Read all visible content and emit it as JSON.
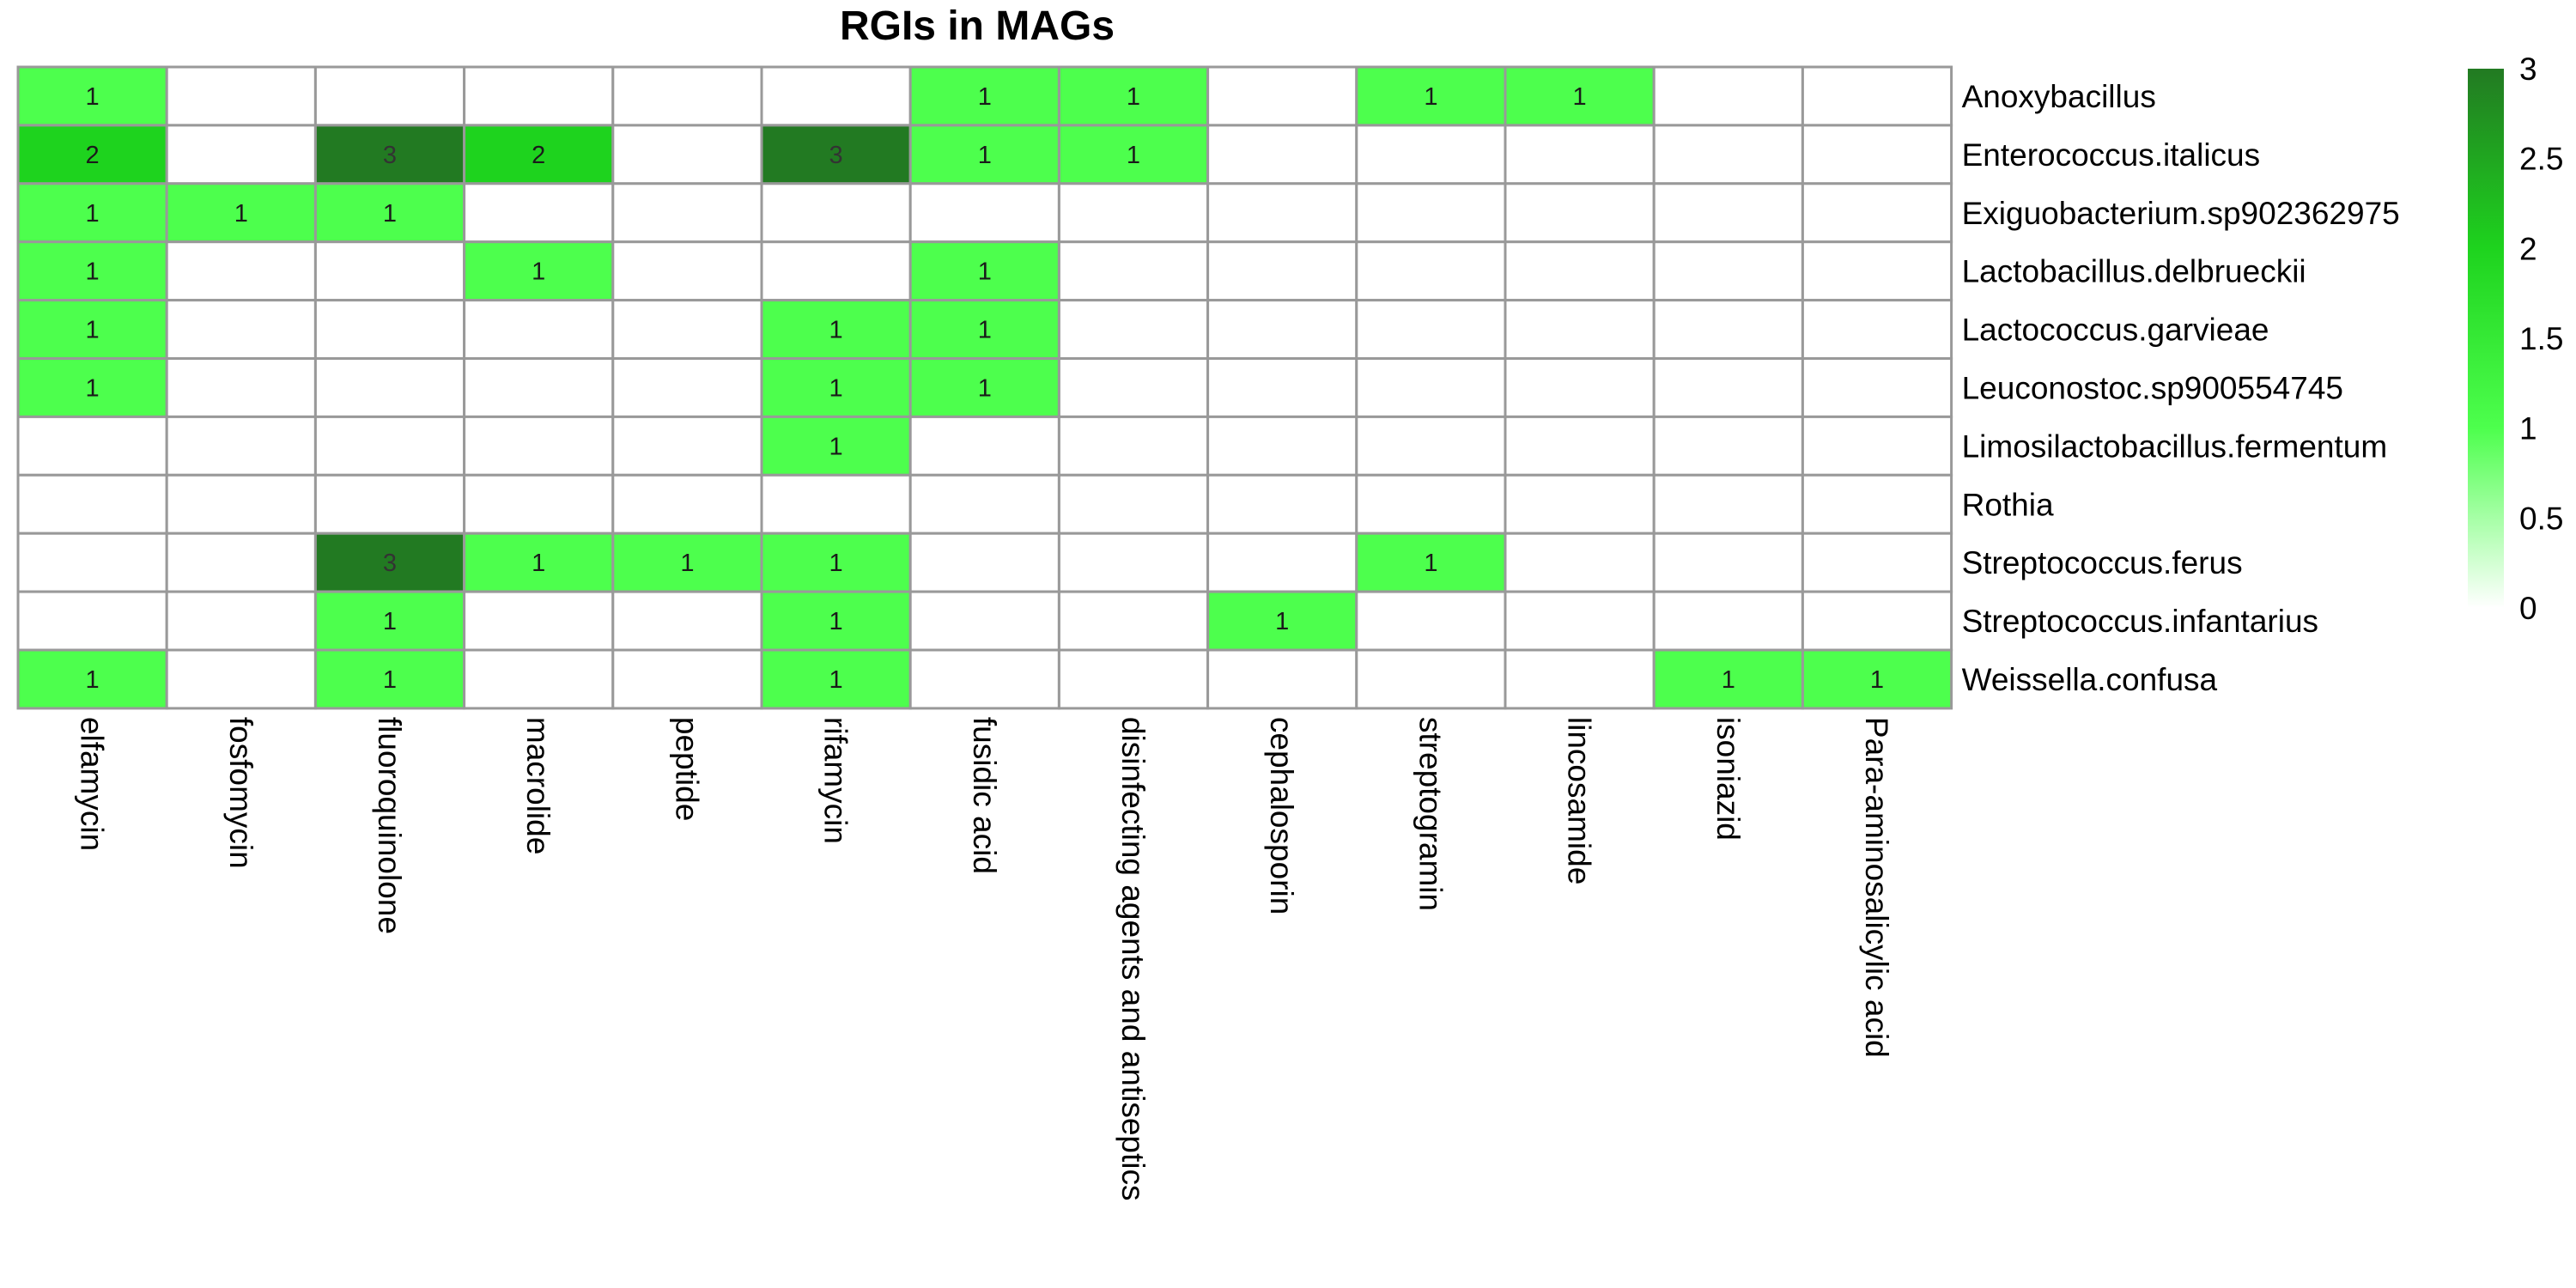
{
  "chart_data": {
    "type": "heatmap",
    "title": "RGIs in MAGs",
    "rows": [
      "Anoxybacillus",
      "Enterococcus.italicus",
      "Exiguobacterium.sp902362975",
      "Lactobacillus.delbrueckii",
      "Lactococcus.garvieae",
      "Leuconostoc.sp900554745",
      "Limosilactobacillus.fermentum",
      "Rothia",
      "Streptococcus.ferus",
      "Streptococcus.infantarius",
      "Weissella.confusa"
    ],
    "columns": [
      "elfamycin",
      "fosfomycin",
      "fluoroquinolone",
      "macrolide",
      "peptide",
      "rifamycin",
      "fusidic acid",
      "disinfecting agents and antiseptics",
      "cephalosporin",
      "streptogramin",
      "lincosamide",
      "isoniazid",
      "Para-aminosalicylic acid"
    ],
    "values": [
      [
        1,
        0,
        0,
        0,
        0,
        0,
        1,
        1,
        0,
        1,
        1,
        0,
        0
      ],
      [
        2,
        0,
        3,
        2,
        0,
        3,
        1,
        1,
        0,
        0,
        0,
        0,
        0
      ],
      [
        1,
        1,
        1,
        0,
        0,
        0,
        0,
        0,
        0,
        0,
        0,
        0,
        0
      ],
      [
        1,
        0,
        0,
        1,
        0,
        0,
        1,
        0,
        0,
        0,
        0,
        0,
        0
      ],
      [
        1,
        0,
        0,
        0,
        0,
        1,
        1,
        0,
        0,
        0,
        0,
        0,
        0
      ],
      [
        1,
        0,
        0,
        0,
        0,
        1,
        1,
        0,
        0,
        0,
        0,
        0,
        0
      ],
      [
        0,
        0,
        0,
        0,
        0,
        1,
        0,
        0,
        0,
        0,
        0,
        0,
        0
      ],
      [
        0,
        0,
        0,
        0,
        0,
        0,
        0,
        0,
        0,
        0,
        0,
        0,
        0
      ],
      [
        0,
        0,
        3,
        1,
        1,
        1,
        0,
        0,
        0,
        1,
        0,
        0,
        0
      ],
      [
        0,
        0,
        1,
        0,
        0,
        1,
        0,
        0,
        1,
        0,
        0,
        0,
        0
      ],
      [
        1,
        0,
        1,
        0,
        0,
        1,
        0,
        0,
        0,
        0,
        0,
        1,
        1
      ]
    ],
    "show_zero_labels": false,
    "color_scale": {
      "min": 0,
      "max": 3,
      "stops": [
        {
          "value": 0,
          "color": "#ffffff"
        },
        {
          "value": 1,
          "color": "#4dff4d"
        },
        {
          "value": 2,
          "color": "#1ed31e"
        },
        {
          "value": 3,
          "color": "#227a22"
        }
      ],
      "ticks": [
        "0",
        "0.5",
        "1",
        "1.5",
        "2",
        "2.5",
        "3"
      ]
    },
    "grid_color": "#999999",
    "legend_position": "right"
  }
}
